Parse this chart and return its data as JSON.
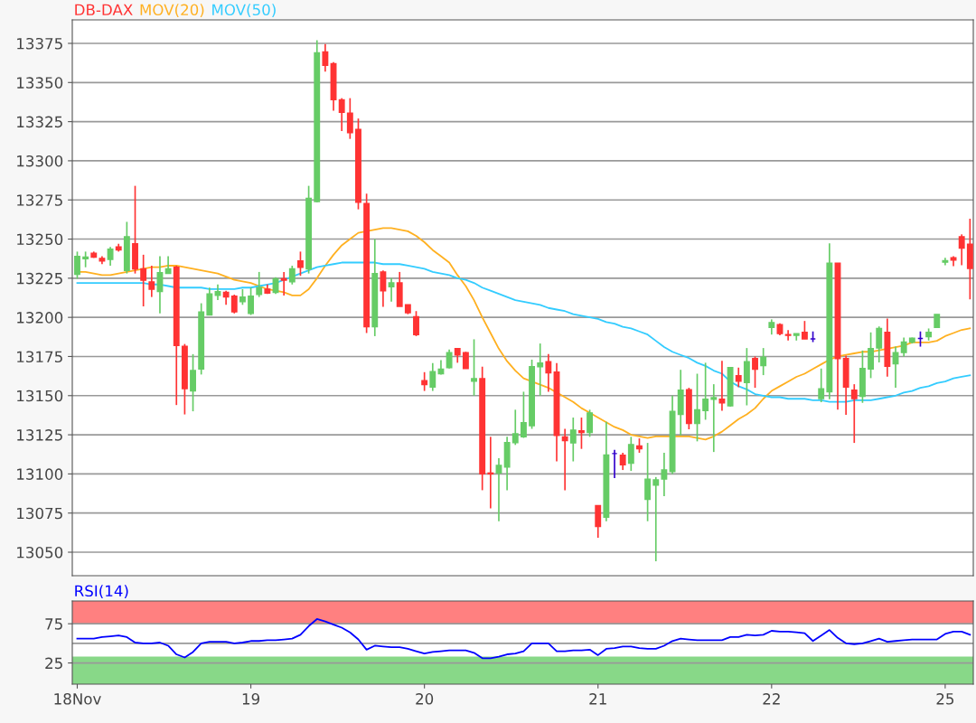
{
  "chart_data": [
    {
      "type": "candlestick",
      "ylim": [
        13035,
        13390
      ],
      "yticks": [
        13050,
        13075,
        13100,
        13125,
        13150,
        13175,
        13200,
        13225,
        13250,
        13275,
        13300,
        13325,
        13350,
        13375
      ],
      "grid": "y",
      "legend": "top left",
      "tick_labels": "y",
      "categories": [
        null,
        null,
        null,
        null,
        null,
        null,
        null,
        null,
        null,
        null,
        null,
        null,
        null,
        null,
        null,
        null,
        null,
        null,
        null,
        null,
        null,
        null,
        null,
        null,
        null,
        null,
        null,
        null,
        null,
        null,
        null,
        null,
        null,
        null,
        null,
        null,
        null,
        null,
        null,
        null,
        null,
        null,
        null,
        null,
        null,
        null,
        null,
        null,
        null,
        null,
        null,
        null,
        null,
        null,
        null,
        null,
        null,
        null,
        null,
        null,
        null,
        null,
        null,
        null,
        null,
        null,
        null,
        null,
        null,
        null,
        null,
        null,
        null,
        null,
        null,
        null,
        null,
        null,
        null,
        null,
        null,
        null,
        null,
        null,
        null,
        null,
        null,
        null,
        null,
        null,
        null,
        null,
        null,
        null,
        null,
        null,
        null,
        null,
        null,
        null,
        null,
        null,
        null,
        null,
        null,
        null,
        null,
        null,
        null
      ],
      "series": [
        {
          "name": "DB-DAX",
          "type": "candlestick",
          "color": "#ff3333",
          "ohlc": [
            [
              13227.5,
              13242,
              13224.6,
              13239
            ],
            [
              13237.5,
              13242,
              13232,
              13238.5
            ],
            [
              13241,
              13242,
              13238,
              13238.5
            ],
            [
              13237.7,
              13239,
              13234,
              13236
            ],
            [
              13237,
              13245,
              13233,
              13243.5
            ],
            [
              13245,
              13247,
              13242,
              13243
            ],
            [
              13230,
              13261,
              13228,
              13251.5
            ],
            [
              13247,
              13284,
              13228,
              13231
            ],
            [
              13231,
              13240,
              13207,
              13223.7
            ],
            [
              13222.7,
              13233,
              13213,
              13218
            ],
            [
              13216.5,
              13239,
              13202.5,
              13228.5
            ],
            [
              13228,
              13239,
              13228,
              13231
            ],
            [
              13232,
              13233,
              13144,
              13182
            ],
            [
              13181.5,
              13183,
              13138,
              13154.5
            ],
            [
              13153,
              13176.5,
              13140,
              13166
            ],
            [
              13167,
              13209,
              13163.5,
              13203.5
            ],
            [
              13201.5,
              13219,
              13201.5,
              13215
            ],
            [
              13214,
              13221,
              13211,
              13216.5
            ],
            [
              13216,
              13217,
              13208,
              13213
            ],
            [
              13213.5,
              13214.5,
              13202.5,
              13203.5
            ],
            [
              13210,
              13218,
              13208,
              13213
            ],
            [
              13202.5,
              13219,
              13201.5,
              13213.5
            ],
            [
              13214.6,
              13229,
              13213,
              13219
            ],
            [
              13218,
              13221,
              13215,
              13215.5
            ],
            [
              13216,
              13225.6,
              13215,
              13224.6
            ],
            [
              13224.6,
              13229,
              13214,
              13223.7
            ],
            [
              13222.7,
              13233,
              13221,
              13231
            ],
            [
              13236,
              13242,
              13226.5,
              13232
            ],
            [
              13231,
              13284,
              13228,
              13276
            ],
            [
              13274,
              13377,
              13273.5,
              13369
            ],
            [
              13369.6,
              13374.6,
              13357,
              13361
            ],
            [
              13362,
              13363,
              13332,
              13339
            ],
            [
              13339,
              13340,
              13319,
              13331
            ],
            [
              13330.4,
              13340,
              13314,
              13318
            ],
            [
              13320,
              13327,
              13269,
              13273.5
            ],
            [
              13272.7,
              13279,
              13190,
              13194
            ],
            [
              13194,
              13250,
              13188,
              13228
            ],
            [
              13229,
              13230,
              13206.7,
              13217
            ],
            [
              13219.6,
              13225,
              13210,
              13222
            ],
            [
              13222,
              13229,
              13207,
              13207
            ],
            [
              13208,
              13208,
              13202,
              13203
            ],
            [
              13200.4,
              13204,
              13188,
              13189
            ],
            [
              13159.6,
              13165,
              13153,
              13157
            ],
            [
              13155.4,
              13170.8,
              13153,
              13165.4
            ],
            [
              13164,
              13172.7,
              13163.5,
              13167
            ],
            [
              13167.9,
              13179.4,
              13167.3,
              13177.5
            ],
            [
              13180,
              13180,
              13171,
              13176
            ],
            [
              13177.5,
              13178,
              13167.3,
              13167.3
            ],
            [
              13159.2,
              13186,
              13150,
              13160.8
            ],
            [
              13160.8,
              13168.5,
              13089.6,
              13100
            ],
            [
              13100.6,
              13123.7,
              13078,
              13100
            ],
            [
              13100.6,
              13110,
              13069.8,
              13105.4
            ],
            [
              13104.4,
              13123.7,
              13089.6,
              13120
            ],
            [
              13120,
              13141,
              13118.5,
              13125.6
            ],
            [
              13123.7,
              13152.5,
              13123,
              13132.7
            ],
            [
              13130.8,
              13173,
              13128.8,
              13168.5
            ],
            [
              13168.5,
              13183.3,
              13150,
              13170.8
            ],
            [
              13171.7,
              13176.5,
              13152.5,
              13164.6
            ],
            [
              13165,
              13170.8,
              13108,
              13124.6
            ],
            [
              13123.7,
              13128.8,
              13089.6,
              13121.2
            ],
            [
              13119.8,
              13136,
              13108,
              13128
            ],
            [
              13127.5,
              13136,
              13116,
              13126.5
            ],
            [
              13126.5,
              13141,
              13123.7,
              13139
            ],
            [
              13079.8,
              13079.8,
              13059.2,
              13066.4
            ],
            [
              13072.3,
              13133.3,
              13069.8,
              13112.1
            ],
            [
              13113,
              13115.4,
              13097.3,
              13113
            ],
            [
              13112,
              13113.5,
              13102.5,
              13105.8
            ],
            [
              13106.9,
              13123.7,
              13101.9,
              13118.8
            ],
            [
              13117.9,
              13122.7,
              13113.5,
              13116
            ],
            [
              13083.8,
              13119.8,
              13069.8,
              13096.7
            ],
            [
              13092.9,
              13098,
              13044.2,
              13096.2
            ],
            [
              13096.7,
              13113.5,
              13085.8,
              13102.5
            ],
            [
              13101.5,
              13150,
              13100,
              13140
            ],
            [
              13138,
              13166.5,
              13124.6,
              13153.5
            ],
            [
              13153.8,
              13155,
              13128.5,
              13132.3
            ],
            [
              13132.3,
              13164,
              13120.8,
              13141
            ],
            [
              13140.4,
              13171,
              13134.6,
              13147.7
            ],
            [
              13147.7,
              13157.3,
              13114,
              13148.7
            ],
            [
              13147.7,
              13172.3,
              13140.4,
              13145.4
            ],
            [
              13143.5,
              13167.9,
              13142.9,
              13167.9
            ],
            [
              13162.7,
              13167.9,
              13155.4,
              13159.2
            ],
            [
              13158.3,
              13180.4,
              13143.8,
              13171.7
            ],
            [
              13173.7,
              13175,
              13155,
              13166.9
            ],
            [
              13169.2,
              13180.4,
              13163.1,
              13174.6
            ],
            [
              13193.5,
              13198.7,
              13189,
              13196.7
            ],
            [
              13195.4,
              13196.2,
              13188.5,
              13189.6
            ],
            [
              13189,
              13191.9,
              13185.2,
              13188.5
            ],
            [
              13188.5,
              13189.6,
              13185.2,
              13189.6
            ],
            [
              13190.4,
              13197.7,
              13186.2,
              13186.2
            ],
            [
              13186.2,
              13191,
              13184.2,
              13186.2
            ],
            [
              13148.1,
              13167.3,
              13145.8,
              13154.4
            ],
            [
              13152.5,
              13247.3,
              13147.7,
              13234.6
            ],
            [
              13234.6,
              13234.6,
              13141,
              13173.7
            ],
            [
              13173.7,
              13175.6,
              13137.7,
              13155.4
            ],
            [
              13153.5,
              13157.3,
              13119.8,
              13148.1
            ],
            [
              13149.6,
              13178.8,
              13145.4,
              13167.3
            ],
            [
              13167,
              13190.4,
              13161.2,
              13180
            ],
            [
              13180.4,
              13194.2,
              13171.2,
              13192.9
            ],
            [
              13190.4,
              13199.2,
              13162.1,
              13168.8
            ],
            [
              13170.4,
              13181.3,
              13155,
              13177.5
            ],
            [
              13177.5,
              13187.1,
              13175,
              13184.2
            ],
            [
              13184.2,
              13187.1,
              13183.3,
              13186.7
            ],
            [
              13186.5,
              13191,
              13181.3,
              13186.5
            ],
            [
              13187.7,
              13192.9,
              13185.2,
              13190.4
            ],
            [
              13193.5,
              13201.9,
              13193.5,
              13201.9
            ],
            [
              13235.2,
              13238.1,
              13233.3,
              13236.2
            ],
            [
              13238.1,
              13239,
              13232.7,
              13236.5
            ],
            [
              13251.5,
              13253,
              13233.3,
              13244.2
            ],
            [
              13246.7,
              13263,
              13211.5,
              13231.3
            ]
          ],
          "colors": [
            "#66cc66",
            "#66cc66",
            "#ff3333",
            "#ff3333",
            "#66cc66",
            "#ff3333",
            "#66cc66",
            "#ff3333",
            "#ff3333",
            "#ff3333",
            "#66cc66",
            "#66cc66",
            "#ff3333",
            "#ff3333",
            "#66cc66",
            "#66cc66",
            "#66cc66",
            "#66cc66",
            "#ff3333",
            "#ff3333",
            "#66cc66",
            "#66cc66",
            "#66cc66",
            "#ff3333",
            "#66cc66",
            "#ff3333",
            "#66cc66",
            "#ff3333",
            "#66cc66",
            "#66cc66",
            "#ff3333",
            "#ff3333",
            "#ff3333",
            "#ff3333",
            "#ff3333",
            "#ff3333",
            "#66cc66",
            "#ff3333",
            "#66cc66",
            "#ff3333",
            "#ff3333",
            "#ff3333",
            "#ff3333",
            "#66cc66",
            "#66cc66",
            "#66cc66",
            "#ff3333",
            "#ff3333",
            "#66cc66",
            "#ff3333",
            "#ff3333",
            "#66cc66",
            "#66cc66",
            "#66cc66",
            "#66cc66",
            "#66cc66",
            "#66cc66",
            "#ff3333",
            "#ff3333",
            "#ff3333",
            "#66cc66",
            "#ff3333",
            "#66cc66",
            "#ff3333",
            "#66cc66",
            "#3300cc",
            "#ff3333",
            "#66cc66",
            "#ff3333",
            "#66cc66",
            "#66cc66",
            "#66cc66",
            "#66cc66",
            "#66cc66",
            "#ff3333",
            "#66cc66",
            "#66cc66",
            "#66cc66",
            "#ff3333",
            "#66cc66",
            "#ff3333",
            "#66cc66",
            "#ff3333",
            "#66cc66",
            "#66cc66",
            "#ff3333",
            "#ff3333",
            "#66cc66",
            "#ff3333",
            "#3300cc",
            "#66cc66",
            "#66cc66",
            "#ff3333",
            "#ff3333",
            "#ff3333",
            "#66cc66",
            "#66cc66",
            "#66cc66",
            "#ff3333",
            "#66cc66",
            "#66cc66",
            "#66cc66",
            "#3300cc",
            "#66cc66",
            "#66cc66",
            "#66cc66",
            "#ff3333",
            "#ff3333",
            "#ff3333"
          ]
        },
        {
          "name": "MOV(20)",
          "type": "line",
          "color": "#ffb020",
          "values": [
            13229,
            13229,
            13228,
            13227,
            13227,
            13228,
            13229,
            13230,
            13231,
            13232,
            13232,
            13233,
            13233,
            13232,
            13231,
            13230,
            13229,
            13228,
            13226,
            13224,
            13223,
            13222,
            13220,
            13218,
            13217,
            13216,
            13214,
            13214,
            13218,
            13225,
            13233,
            13240,
            13246,
            13250,
            13254,
            13255,
            13256,
            13257,
            13257,
            13256,
            13255,
            13252,
            13248,
            13243,
            13239,
            13235,
            13227,
            13220,
            13211,
            13200,
            13190,
            13180,
            13172,
            13166,
            13161,
            13159,
            13157,
            13155,
            13152,
            13149,
            13146,
            13142,
            13139,
            13136,
            13133,
            13130,
            13128,
            13125,
            13124,
            13123,
            13124,
            13124,
            13124,
            13124,
            13124,
            13123,
            13122,
            13124,
            13127,
            13131,
            13135,
            13138,
            13142,
            13148,
            13153,
            13156,
            13159,
            13162,
            13164,
            13167,
            13170,
            13173,
            13175,
            13176,
            13177,
            13178,
            13178,
            13179,
            13180,
            13181,
            13182,
            13184,
            13184,
            13184,
            13185,
            13188,
            13190,
            13192,
            13193
          ]
        },
        {
          "name": "MOV(50)",
          "type": "line",
          "color": "#33ccff",
          "values": [
            13222,
            13222,
            13222,
            13222,
            13222,
            13222,
            13222,
            13222,
            13222,
            13221,
            13221,
            13220,
            13219,
            13219,
            13219,
            13219,
            13218,
            13218,
            13218,
            13218,
            13219,
            13219,
            13220,
            13221,
            13222,
            13224,
            13226,
            13228,
            13230,
            13232,
            13233,
            13234,
            13235,
            13235,
            13235,
            13235,
            13235,
            13234,
            13234,
            13234,
            13233,
            13232,
            13231,
            13229,
            13228,
            13227,
            13225,
            13224,
            13222,
            13219,
            13217,
            13215,
            13213,
            13211,
            13210,
            13209,
            13208,
            13206,
            13205,
            13204,
            13202,
            13201,
            13200,
            13199,
            13197,
            13196,
            13194,
            13193,
            13191,
            13189,
            13185,
            13181,
            13178,
            13176,
            13174,
            13171,
            13169,
            13166,
            13164,
            13159,
            13156,
            13154,
            13151,
            13150,
            13149,
            13149,
            13148,
            13148,
            13148,
            13147,
            13147,
            13146,
            13146,
            13146,
            13147,
            13147,
            13147,
            13148,
            13149,
            13150,
            13152,
            13153,
            13155,
            13156,
            13158,
            13159,
            13161,
            13162,
            13163
          ]
        }
      ]
    },
    {
      "type": "line",
      "ylim": [
        -2,
        104
      ],
      "yticks": [
        25,
        75
      ],
      "grid": "y",
      "legend": "top left",
      "categories": [
        "18Nov",
        null,
        null,
        null,
        null,
        null,
        null,
        null,
        null,
        null,
        null,
        null,
        null,
        null,
        null,
        null,
        null,
        null,
        null,
        null,
        null,
        "19",
        null,
        null,
        null,
        null,
        null,
        null,
        null,
        null,
        null,
        null,
        null,
        null,
        null,
        null,
        null,
        null,
        null,
        null,
        null,
        null,
        "20",
        null,
        null,
        null,
        null,
        null,
        null,
        null,
        null,
        null,
        null,
        null,
        null,
        null,
        null,
        null,
        null,
        null,
        null,
        null,
        null,
        "21",
        null,
        null,
        null,
        null,
        null,
        null,
        null,
        null,
        null,
        null,
        null,
        null,
        null,
        null,
        null,
        null,
        null,
        null,
        null,
        null,
        "22",
        null,
        null,
        null,
        null,
        null,
        null,
        null,
        null,
        null,
        null,
        null,
        null,
        null,
        null,
        null,
        null,
        null,
        null,
        null,
        null,
        "25",
        null,
        null,
        null
      ],
      "bands": [
        {
          "axis": "y",
          "from": 75,
          "to": 104,
          "color": "#ff8080"
        },
        {
          "axis": "y",
          "from": -2,
          "to": 33,
          "color": "#88d888"
        }
      ],
      "ref_lines": [
        {
          "axis": "y",
          "value": 50,
          "color": "#999999"
        }
      ],
      "series": [
        {
          "name": "RSI(14)",
          "color": "#0000ff",
          "values": [
            56,
            56,
            56,
            58,
            59,
            60,
            58,
            51,
            50,
            50,
            51,
            47,
            36,
            32,
            39,
            50,
            52,
            52,
            52,
            50,
            51,
            53,
            53,
            54,
            54,
            55,
            56,
            61,
            72,
            81,
            78,
            74,
            70,
            64,
            55,
            42,
            47,
            46,
            45,
            45,
            43,
            40,
            37,
            39,
            40,
            41,
            41,
            41,
            38,
            31,
            31,
            33,
            36,
            37,
            40,
            50,
            50,
            50,
            40,
            40,
            41,
            41,
            42,
            35,
            43,
            44,
            46,
            46,
            44,
            43,
            43,
            47,
            53,
            56,
            55,
            54,
            54,
            54,
            54,
            58,
            58,
            61,
            60,
            61,
            66,
            65,
            65,
            64,
            63,
            53,
            60,
            67,
            57,
            50,
            49,
            50,
            53,
            56,
            52,
            53,
            54,
            55,
            55,
            55,
            55,
            62,
            65,
            65,
            61
          ]
        }
      ]
    }
  ]
}
